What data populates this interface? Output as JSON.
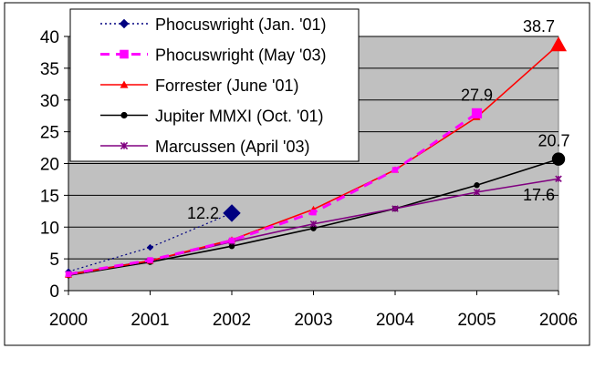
{
  "chart_data": {
    "type": "line",
    "title": "",
    "xlabel": "",
    "ylabel": "",
    "x": [
      "2000",
      "2001",
      "2002",
      "2003",
      "2004",
      "2005",
      "2006"
    ],
    "ylim": [
      0,
      40
    ],
    "yticks": [
      "0",
      "5",
      "10",
      "15",
      "20",
      "25",
      "30",
      "35",
      "40"
    ],
    "grid": "horizontal",
    "plot_background": "#c0c0c0",
    "legend_position": "top-left",
    "series": [
      {
        "name": "Phocuswright (Jan. '01)",
        "color": "#000080",
        "dash": "2,3",
        "marker": "diamond",
        "values": [
          3.0,
          6.8,
          12.2,
          null,
          null,
          null,
          null
        ]
      },
      {
        "name": "Phocuswright (May '03)",
        "color": "#ff00ff",
        "dash": "10,7",
        "marker": "square",
        "values": [
          2.6,
          4.8,
          7.9,
          12.3,
          19.0,
          27.9,
          null
        ]
      },
      {
        "name": "Forrester (June '01)",
        "color": "#ff0000",
        "dash": "",
        "marker": "triangle",
        "values": [
          2.5,
          4.7,
          8.0,
          12.8,
          19.0,
          27.3,
          38.7
        ]
      },
      {
        "name": "Jupiter MMXI (Oct. '01)",
        "color": "#000000",
        "dash": "",
        "marker": "circle",
        "values": [
          2.4,
          4.5,
          7.0,
          9.8,
          12.9,
          16.6,
          20.7
        ]
      },
      {
        "name": "Marcussen (April '03)",
        "color": "#800080",
        "dash": "",
        "marker": "star",
        "values": [
          2.6,
          4.7,
          7.7,
          10.5,
          12.9,
          15.5,
          17.6
        ]
      }
    ],
    "data_labels": [
      {
        "text": "12.2",
        "series": 0,
        "index": 2,
        "pos": "left"
      },
      {
        "text": "27.9",
        "series": 1,
        "index": 5,
        "pos": "top"
      },
      {
        "text": "38.7",
        "series": 2,
        "index": 6,
        "pos": "top-left"
      },
      {
        "text": "20.7",
        "series": 3,
        "index": 6,
        "pos": "top"
      },
      {
        "text": "17.6",
        "series": 4,
        "index": 6,
        "pos": "bottom-left"
      }
    ]
  }
}
